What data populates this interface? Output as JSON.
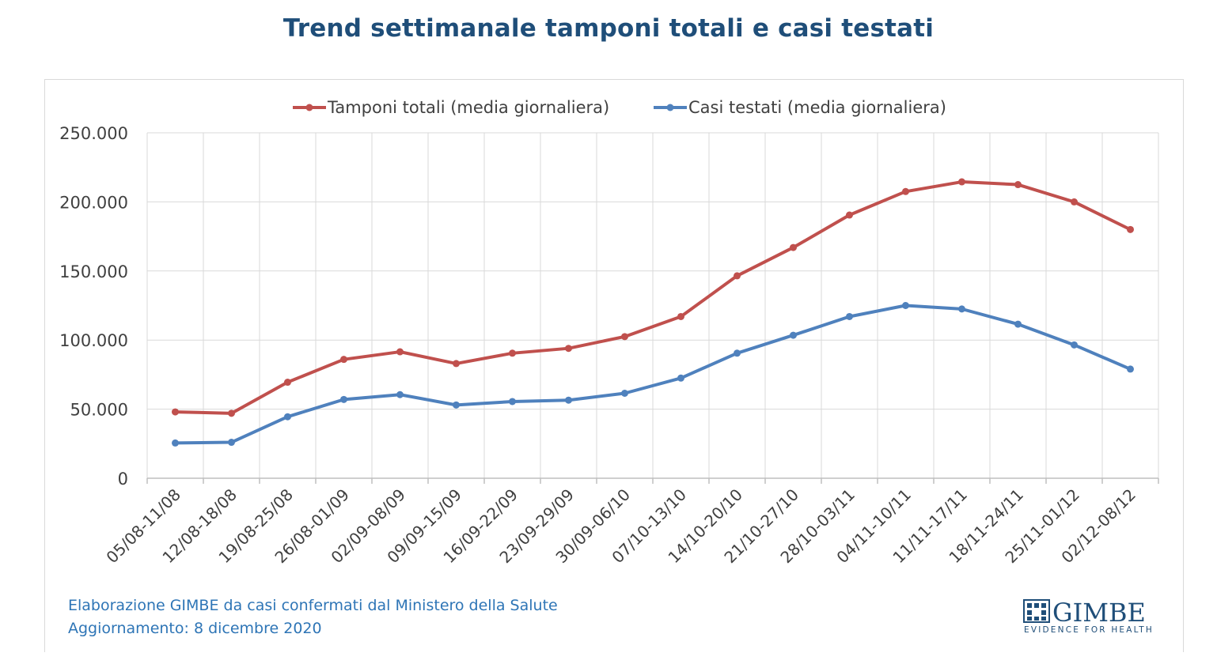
{
  "chart_data": {
    "type": "line",
    "title": "Trend settimanale tamponi totali e casi testati",
    "categories": [
      "05/08-11/08",
      "12/08-18/08",
      "19/08-25/08",
      "26/08-01/09",
      "02/09-08/09",
      "09/09-15/09",
      "16/09-22/09",
      "23/09-29/09",
      "30/09-06/10",
      "07/10-13/10",
      "14/10-20/10",
      "21/10-27/10",
      "28/10-03/11",
      "04/11-10/11",
      "11/11-17/11",
      "18/11-24/11",
      "25/11-01/12",
      "02/12-08/12"
    ],
    "series": [
      {
        "name": "Tamponi totali (media giornaliera)",
        "color": "#c0504d",
        "values": [
          48000,
          47000,
          69500,
          86000,
          91500,
          83000,
          90500,
          94000,
          102500,
          117000,
          146500,
          167000,
          190500,
          207500,
          214500,
          212500,
          200000,
          180000
        ]
      },
      {
        "name": "Casi testati (media giornaliera)",
        "color": "#4f81bd",
        "values": [
          25500,
          26000,
          44500,
          57000,
          60500,
          53000,
          55500,
          56500,
          61500,
          72500,
          90500,
          103500,
          117000,
          125000,
          122500,
          111500,
          96500,
          79000
        ]
      }
    ],
    "ylim": [
      0,
      250000
    ],
    "yticks": [
      0,
      50000,
      100000,
      150000,
      200000,
      250000
    ],
    "ytick_labels": [
      "0",
      "50.000",
      "100.000",
      "150.000",
      "200.000",
      "250.000"
    ],
    "grid": true,
    "legend_position": "top-center"
  },
  "footer": {
    "source": "Elaborazione GIMBE da casi confermati dal Ministero della Salute",
    "updated": "Aggiornamento:  8 dicembre  2020"
  },
  "logo": {
    "name": "GIMBE",
    "tagline": "EVIDENCE FOR HEALTH",
    "color": "#1f4e79"
  }
}
